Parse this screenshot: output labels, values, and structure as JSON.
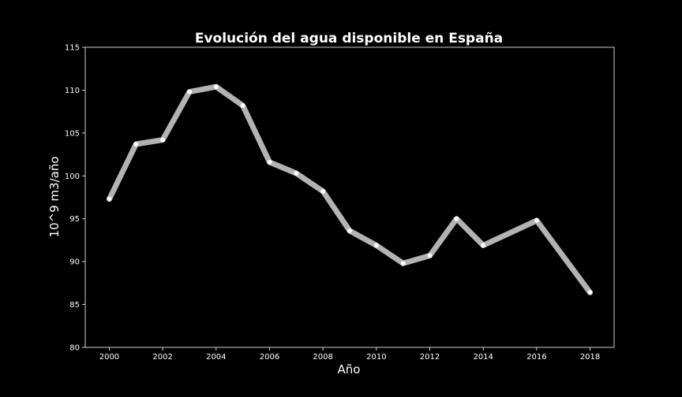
{
  "chart_data": {
    "type": "line",
    "title": "Evolución del agua disponible en España",
    "xlabel": "Año",
    "ylabel": "10^9 m3/año",
    "xlim": [
      1999.1,
      2018.9
    ],
    "ylim": [
      80,
      115
    ],
    "xticks": [
      2000,
      2002,
      2004,
      2006,
      2008,
      2010,
      2012,
      2014,
      2016,
      2018
    ],
    "yticks": [
      80,
      85,
      90,
      95,
      100,
      105,
      110,
      115
    ],
    "grid": false,
    "line_color": "#b3b3b3",
    "marker_color": "#ffffff",
    "background": "#000000",
    "series": [
      {
        "x": [
          2000,
          2001,
          2002,
          2003,
          2004,
          2005,
          2006,
          2007,
          2008,
          2009,
          2010,
          2011,
          2012,
          2013,
          2014,
          2016,
          2018
        ],
        "values": [
          97.3,
          103.7,
          104.2,
          109.8,
          110.4,
          108.2,
          101.6,
          100.3,
          98.2,
          93.6,
          91.9,
          89.8,
          90.7,
          95.0,
          91.9,
          94.8,
          86.4
        ]
      }
    ]
  }
}
